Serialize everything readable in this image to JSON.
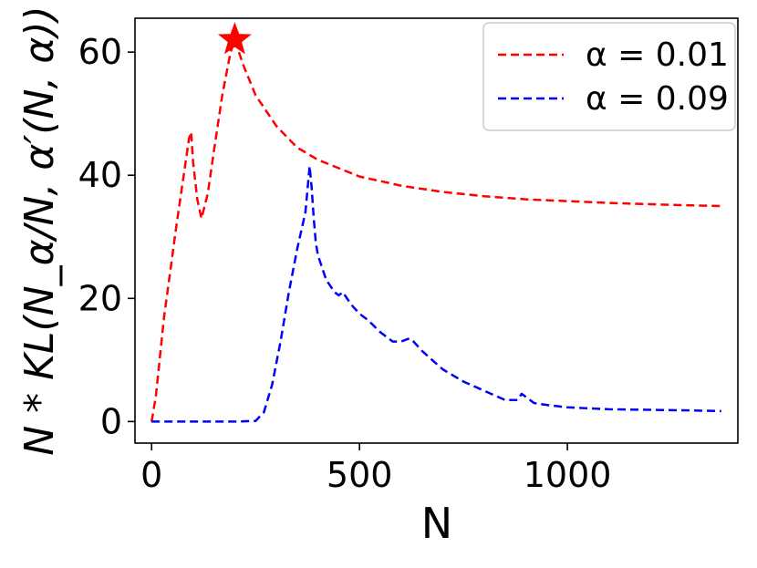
{
  "chart_data": {
    "type": "line",
    "title": "",
    "xlabel": "N",
    "ylabel": "N * KL(N_α/N, α′(N, α))",
    "xlim": [
      -40,
      1410
    ],
    "ylim": [
      -3.5,
      65.5
    ],
    "x_ticks": [
      0,
      500,
      1000
    ],
    "y_ticks": [
      0,
      20,
      40,
      60
    ],
    "x_tick_labels": [
      "0",
      "500",
      "1000"
    ],
    "y_tick_labels": [
      "0",
      "20",
      "40",
      "60"
    ],
    "grid": false,
    "legend_position": "top-right",
    "series": [
      {
        "name": "α = 0.01",
        "legend_label": "α = 0.01",
        "color": "#ff0000",
        "style": "dashed",
        "x": [
          0,
          10,
          30,
          60,
          90,
          95,
          100,
          110,
          120,
          135,
          150,
          170,
          190,
          200,
          220,
          250,
          300,
          350,
          400,
          500,
          600,
          700,
          800,
          900,
          1000,
          1100,
          1200,
          1300,
          1370
        ],
        "y": [
          0,
          4,
          17,
          32,
          46,
          47,
          42,
          36,
          33,
          37,
          44,
          53,
          60,
          62,
          58,
          53,
          48,
          44.5,
          42.5,
          39.8,
          38.3,
          37.3,
          36.6,
          36.1,
          35.8,
          35.5,
          35.3,
          35.1,
          35.0
        ]
      },
      {
        "name": "α = 0.09",
        "legend_label": "α = 0.09",
        "color": "#0000ff",
        "style": "dashed",
        "x": [
          0,
          100,
          200,
          250,
          270,
          290,
          310,
          330,
          350,
          370,
          380,
          385,
          390,
          395,
          400,
          410,
          420,
          430,
          440,
          450,
          460,
          470,
          480,
          500,
          520,
          550,
          580,
          600,
          620,
          630,
          650,
          700,
          750,
          800,
          850,
          880,
          890,
          900,
          920,
          950,
          1000,
          1100,
          1200,
          1300,
          1370
        ],
        "y": [
          0,
          0,
          0,
          0.1,
          1.5,
          6,
          13,
          21,
          28,
          34,
          41.5,
          38,
          33,
          29,
          27,
          25,
          23,
          22,
          21,
          20.5,
          21,
          20,
          19,
          17.5,
          16.5,
          14.5,
          13,
          13,
          13.5,
          13,
          11.5,
          8.5,
          6.5,
          5,
          3.5,
          3.5,
          4.5,
          4,
          3,
          2.7,
          2.3,
          2,
          1.9,
          1.8,
          1.7
        ]
      }
    ],
    "annotations": [
      {
        "type": "star",
        "x": 200,
        "y": 62,
        "color": "#ff0000"
      }
    ]
  }
}
